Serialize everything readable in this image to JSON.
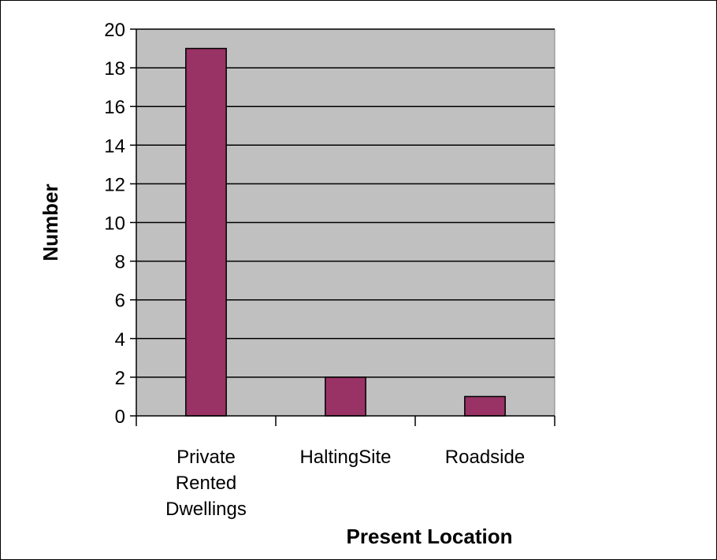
{
  "chart_data": {
    "type": "bar",
    "categories": [
      [
        "Private",
        "Rented",
        "Dwellings"
      ],
      [
        "HaltingSite"
      ],
      [
        "Roadside"
      ]
    ],
    "series": [
      {
        "values": [
          19,
          2,
          1
        ]
      }
    ],
    "xlabel": "Present Location",
    "ylabel": "Number",
    "ylim": [
      0,
      20
    ],
    "yticks": [
      0,
      2,
      4,
      6,
      8,
      10,
      12,
      14,
      16,
      18,
      20
    ],
    "grid": true,
    "legend": "none",
    "colors": {
      "bar": "#993366",
      "plot_background": "#c0c0c0",
      "gridline": "#000000"
    }
  }
}
